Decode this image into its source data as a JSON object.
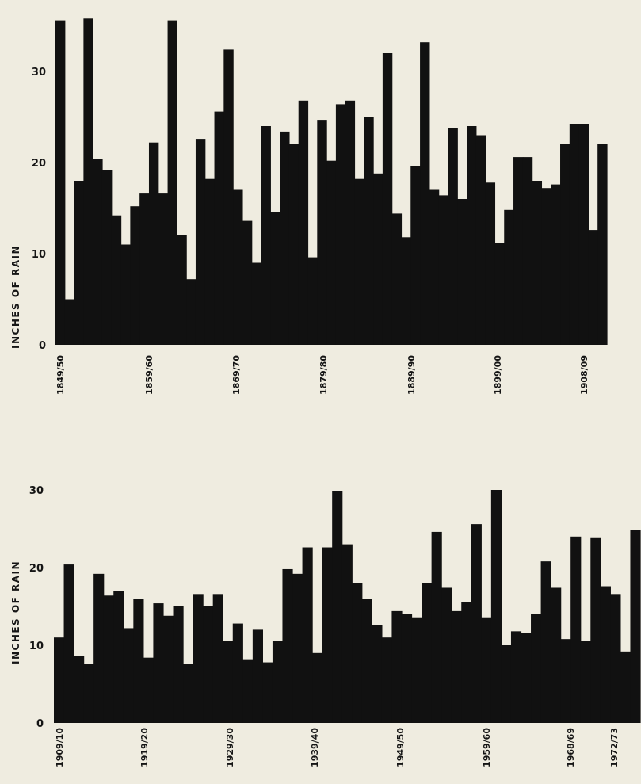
{
  "colors": {
    "background": "#efece0",
    "bars": "#111111",
    "text": "#151515"
  },
  "chart_data": [
    {
      "type": "bar",
      "ylabel": "INCHES OF RAIN",
      "ylim": [
        0,
        36
      ],
      "yticks": [
        0,
        10,
        20,
        30
      ],
      "ytick_labels": [
        "0",
        "10",
        "20",
        "30"
      ],
      "xtick_labels": [
        "1849/50",
        "1859/60",
        "1869/70",
        "1879/80",
        "1889/90",
        "1899/00",
        "1908/09"
      ],
      "grid": false,
      "values": [
        35.6,
        5.0,
        18.0,
        35.8,
        20.4,
        19.2,
        14.2,
        11.0,
        15.2,
        16.6,
        22.2,
        16.6,
        35.6,
        12.0,
        7.2,
        22.6,
        18.2,
        25.6,
        32.4,
        17.0,
        13.6,
        9.0,
        24.0,
        14.6,
        23.4,
        22.0,
        26.8,
        9.6,
        24.6,
        20.2,
        26.4,
        26.8,
        18.2,
        25.0,
        18.8,
        32.0,
        14.4,
        11.8,
        19.6,
        33.2,
        17.0,
        16.4,
        23.8,
        16.0,
        24.0,
        23.0,
        17.8,
        11.2,
        14.8,
        20.6,
        20.6,
        18.0,
        17.2,
        17.6,
        22.0,
        24.2,
        24.2,
        12.6,
        22.0
      ]
    },
    {
      "type": "bar",
      "ylabel": "INCHES OF RAIN",
      "ylim": [
        0,
        31
      ],
      "yticks": [
        0,
        10,
        20,
        30
      ],
      "ytick_labels": [
        "0",
        "10",
        "20",
        "30"
      ],
      "xtick_labels": [
        "1909/10",
        "1919/20",
        "1929/30",
        "1939/40",
        "1949/50",
        "1959/60",
        "1968/69",
        "1972/73"
      ],
      "grid": false,
      "values": [
        11.0,
        20.4,
        8.6,
        7.6,
        19.2,
        16.4,
        17.0,
        12.2,
        16.0,
        8.4,
        15.4,
        13.8,
        15.0,
        7.6,
        16.6,
        15.0,
        16.6,
        10.6,
        12.8,
        8.2,
        12.0,
        7.8,
        10.6,
        19.8,
        19.2,
        22.6,
        9.0,
        22.6,
        29.8,
        23.0,
        18.0,
        16.0,
        12.6,
        11.0,
        14.4,
        14.0,
        13.6,
        18.0,
        24.6,
        17.4,
        14.4,
        15.6,
        25.6,
        13.6,
        30.0,
        10.0,
        11.8,
        11.6,
        14.0,
        20.8,
        17.4,
        10.8,
        24.0,
        10.6,
        23.8,
        17.6,
        16.6,
        9.2,
        24.8
      ]
    }
  ]
}
